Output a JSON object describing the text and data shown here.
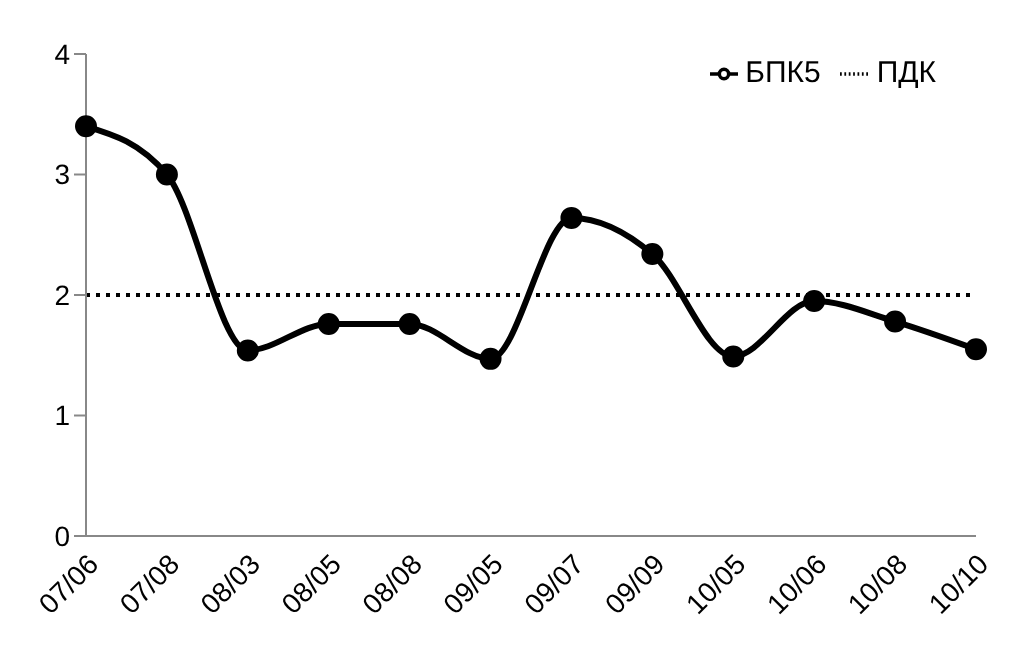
{
  "chart_data": {
    "type": "line",
    "categories": [
      "07/06",
      "07/08",
      "08/03",
      "08/05",
      "08/08",
      "09/05",
      "09/07",
      "09/09",
      "10/05",
      "10/06",
      "10/08",
      "10/10"
    ],
    "series": [
      {
        "name": "БПК5",
        "color": "#000000",
        "marker": "circle",
        "line_style": "solid",
        "values": [
          3.4,
          3.0,
          1.54,
          1.76,
          1.76,
          1.47,
          2.64,
          2.34,
          1.49,
          1.95,
          1.78,
          1.55
        ]
      },
      {
        "name": "ПДК",
        "color": "#000000",
        "marker": "none",
        "line_style": "dotted",
        "values": [
          2,
          2,
          2,
          2,
          2,
          2,
          2,
          2,
          2,
          2,
          2,
          2
        ]
      }
    ],
    "ylim": [
      0,
      4
    ],
    "yticks": [
      0,
      1,
      2,
      3,
      4
    ],
    "grid": false,
    "legend": "top right"
  }
}
